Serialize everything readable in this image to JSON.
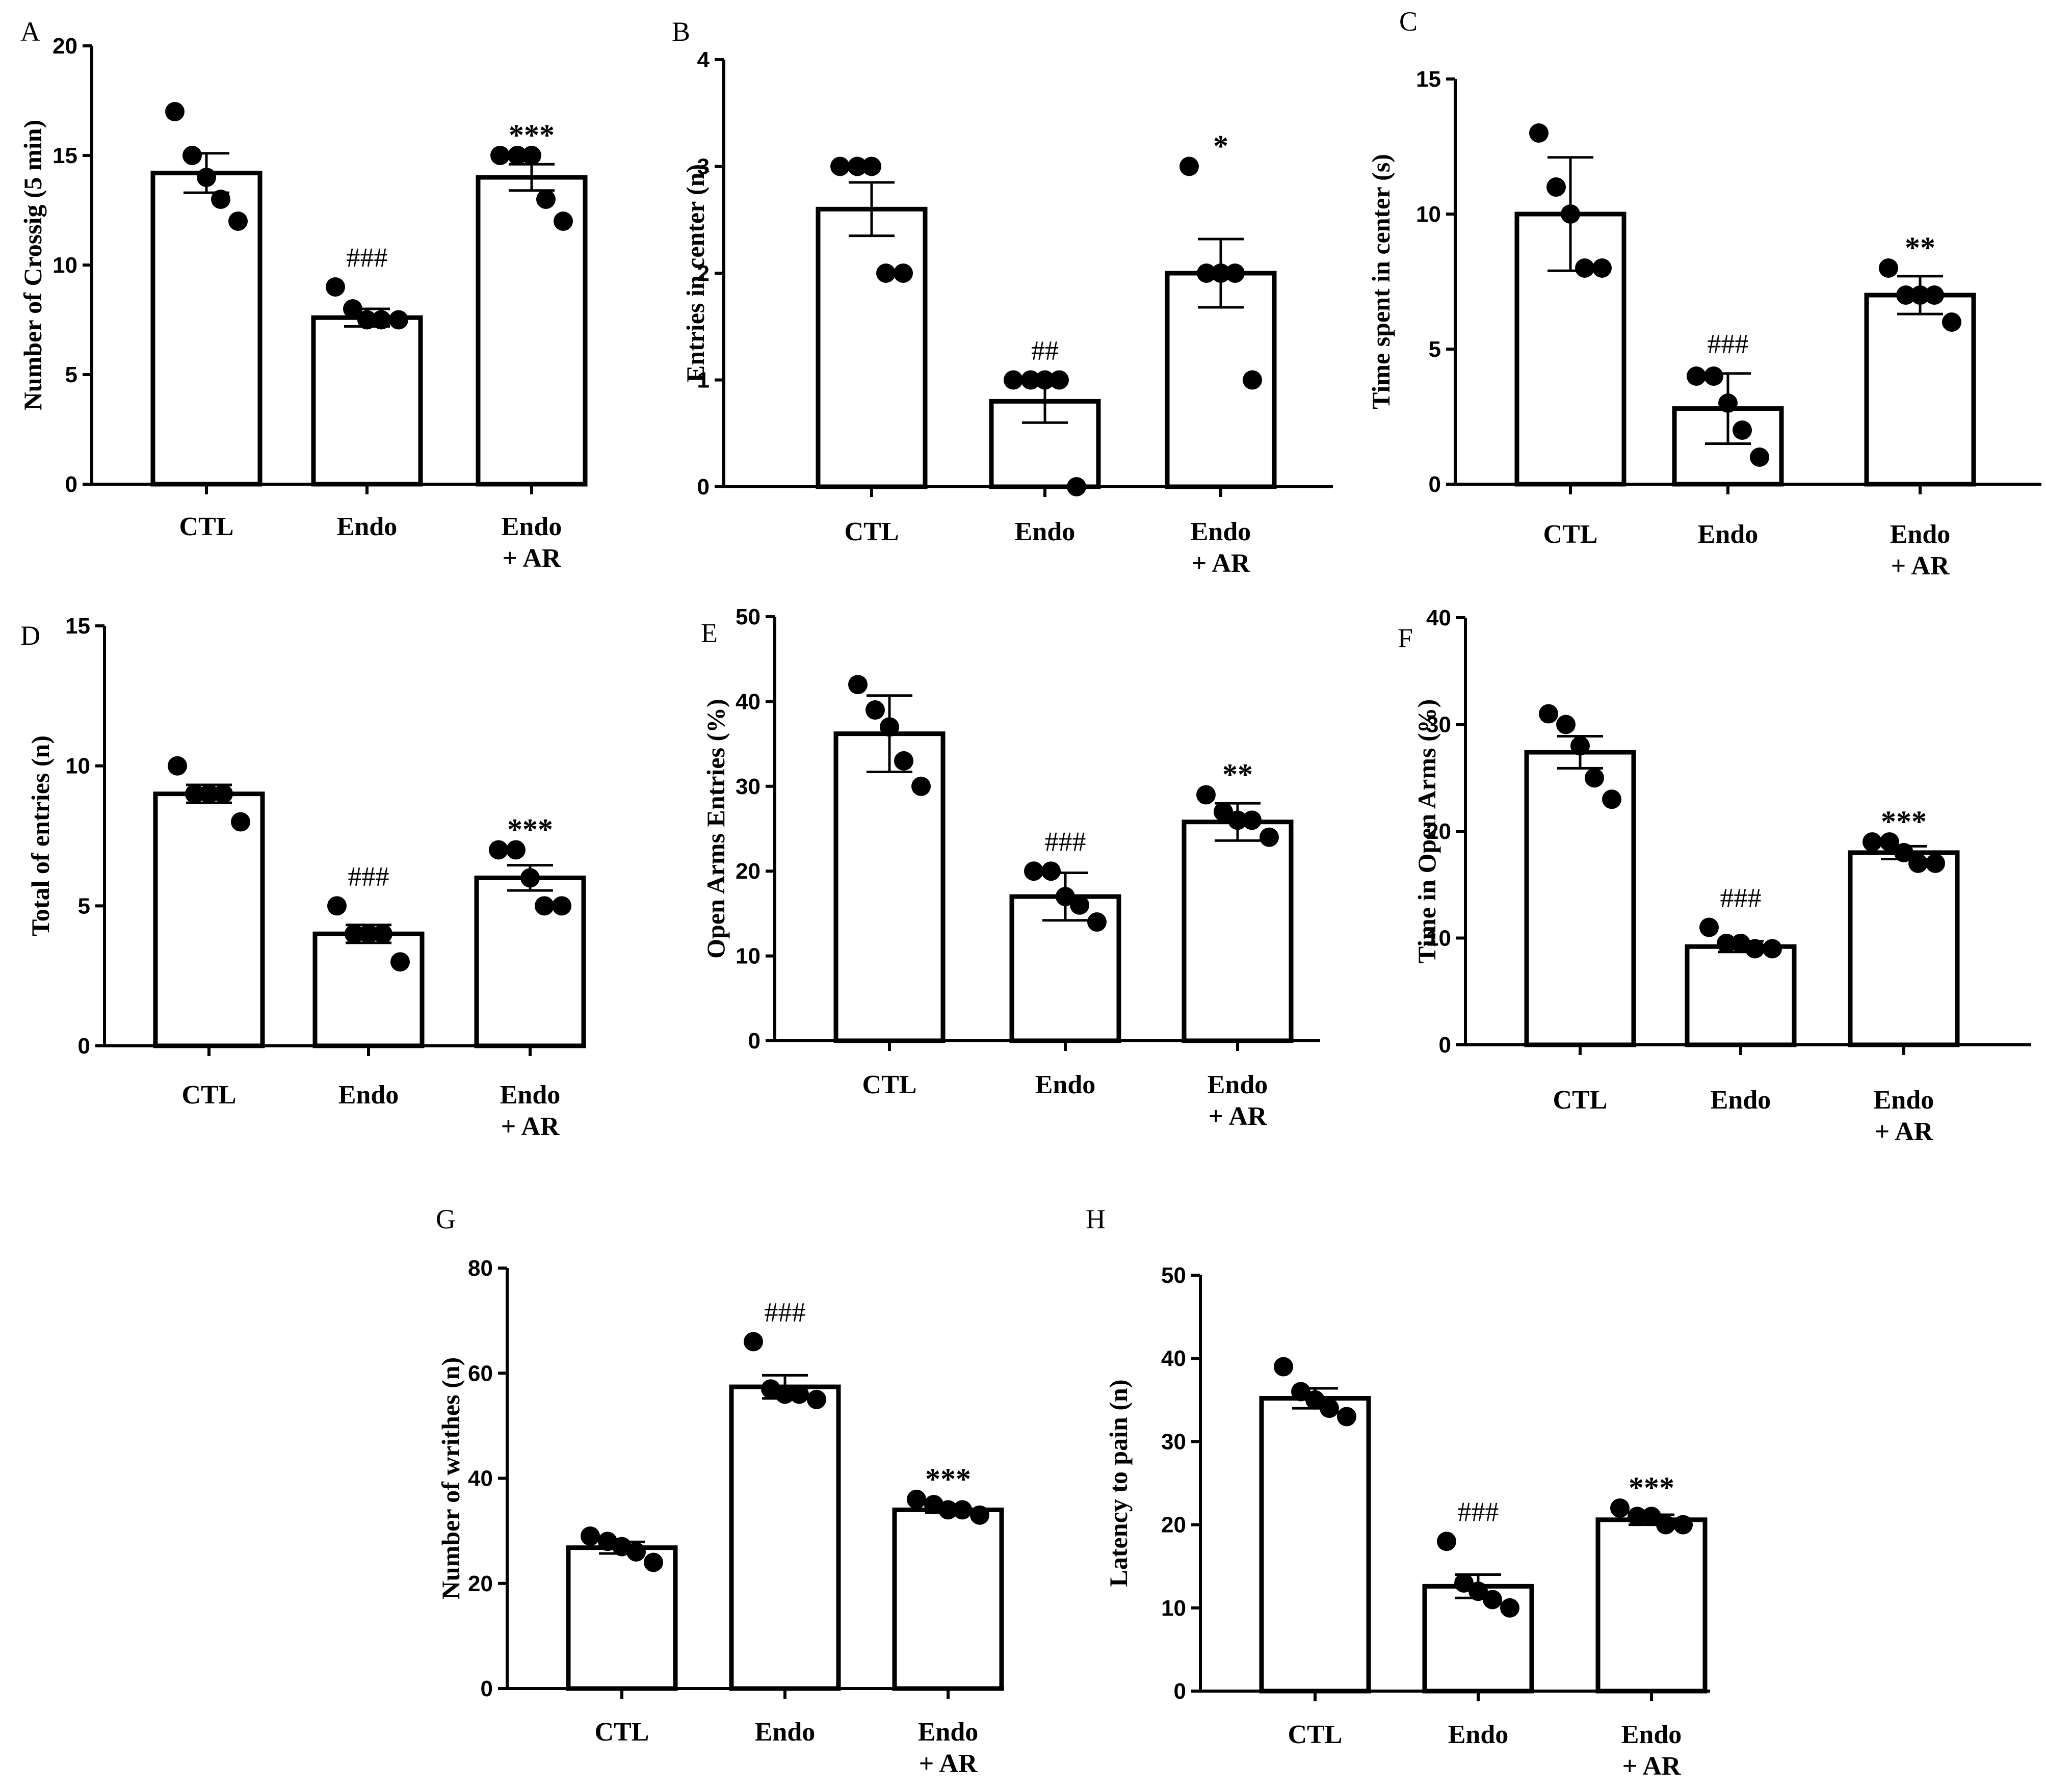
{
  "chart_data": [
    {
      "panel": "A",
      "type": "bar",
      "categories": [
        "CTL",
        "Endo",
        "Endo\n+ AR"
      ],
      "ylabel": "Number of Crossig (5 min)",
      "ylim": [
        0,
        20
      ],
      "yticks": [
        0,
        5,
        10,
        15,
        20
      ],
      "values": [
        14.2,
        7.6,
        14.0
      ],
      "errors": [
        0.9,
        0.4,
        0.6
      ],
      "points": [
        [
          17,
          15,
          14,
          13,
          12
        ],
        [
          9,
          8,
          7.5,
          7.5,
          7.5
        ],
        [
          15,
          15,
          15,
          13,
          12
        ]
      ],
      "annotations": [
        "",
        "###",
        "***"
      ]
    },
    {
      "panel": "B",
      "type": "bar",
      "categories": [
        "CTL",
        "Endo",
        "Endo\n+ AR"
      ],
      "ylabel": "Entries in center (n)",
      "ylim": [
        0,
        4
      ],
      "yticks": [
        0,
        1,
        2,
        3,
        4
      ],
      "values": [
        2.6,
        0.8,
        2.0
      ],
      "errors": [
        0.25,
        0.2,
        0.32
      ],
      "points": [
        [
          3,
          3,
          3,
          2,
          2
        ],
        [
          1,
          1,
          1,
          1,
          0
        ],
        [
          3,
          2,
          2,
          2,
          1
        ]
      ],
      "annotations": [
        "",
        "##",
        "*"
      ]
    },
    {
      "panel": "C",
      "type": "bar",
      "categories": [
        "CTL",
        "Endo",
        "Endo\n+ AR"
      ],
      "ylabel": "Time spent in center (s)",
      "ylim": [
        0,
        15
      ],
      "yticks": [
        0,
        5,
        10,
        15
      ],
      "values": [
        10.0,
        2.8,
        7.0
      ],
      "errors": [
        2.1,
        1.3,
        0.7
      ],
      "points": [
        [
          13,
          11,
          10,
          8,
          8
        ],
        [
          4,
          4,
          3,
          2,
          1
        ],
        [
          8,
          7,
          7,
          7,
          6
        ]
      ],
      "annotations": [
        "",
        "###",
        "**"
      ]
    },
    {
      "panel": "D",
      "type": "bar",
      "categories": [
        "CTL",
        "Endo",
        "Endo\n+ AR"
      ],
      "ylabel": "Total of entries (n)",
      "ylim": [
        0,
        15
      ],
      "yticks": [
        0,
        5,
        10,
        15
      ],
      "values": [
        9.0,
        4.0,
        6.0
      ],
      "errors": [
        0.32,
        0.32,
        0.45
      ],
      "points": [
        [
          10,
          9,
          9,
          9,
          8
        ],
        [
          5,
          4,
          4,
          4,
          3
        ],
        [
          7,
          7,
          6,
          5,
          5
        ]
      ],
      "annotations": [
        "",
        "###",
        "***"
      ]
    },
    {
      "panel": "E",
      "type": "bar",
      "categories": [
        "CTL",
        "Endo",
        "Endo\n+ AR"
      ],
      "ylabel": "Open Arms Entries (%)",
      "ylim": [
        0,
        50
      ],
      "yticks": [
        0,
        10,
        20,
        30,
        40,
        50
      ],
      "values": [
        36.2,
        17.0,
        25.8
      ],
      "errors": [
        4.5,
        2.8,
        2.2
      ],
      "points": [
        [
          42,
          39,
          37,
          33,
          30
        ],
        [
          20,
          20,
          17,
          16,
          14
        ],
        [
          29,
          27,
          26,
          26,
          24
        ]
      ],
      "annotations": [
        "",
        "###",
        "**"
      ]
    },
    {
      "panel": "F",
      "type": "bar",
      "categories": [
        "CTL",
        "Endo",
        "Endo\n+ AR"
      ],
      "ylabel": "Time in Open Arms (%)",
      "ylim": [
        0,
        40
      ],
      "yticks": [
        0,
        10,
        20,
        30,
        40
      ],
      "values": [
        27.4,
        9.2,
        18.0
      ],
      "errors": [
        1.5,
        0.5,
        0.6
      ],
      "points": [
        [
          31,
          30,
          28,
          25,
          23
        ],
        [
          11,
          9.5,
          9.5,
          9,
          9
        ],
        [
          19,
          19,
          18,
          17,
          17
        ]
      ],
      "annotations": [
        "",
        "###",
        "***"
      ]
    },
    {
      "panel": "G",
      "type": "bar",
      "categories": [
        "CTL",
        "Endo",
        "Endo\n+ AR"
      ],
      "ylabel": "Number of writhes (n)",
      "ylim": [
        0,
        80
      ],
      "yticks": [
        0,
        20,
        40,
        60,
        80
      ],
      "values": [
        26.8,
        57.4,
        34.0
      ],
      "errors": [
        1.1,
        2.2,
        0.5
      ],
      "points": [
        [
          29,
          28,
          27,
          26,
          24
        ],
        [
          66,
          57,
          56,
          56,
          55
        ],
        [
          36,
          35,
          34,
          34,
          33
        ]
      ],
      "annotations": [
        "",
        "###",
        "***"
      ]
    },
    {
      "panel": "H",
      "type": "bar",
      "categories": [
        "CTL",
        "Endo",
        "Endo\n+ AR"
      ],
      "ylabel": "Latency to pain (n)",
      "ylim": [
        0,
        50
      ],
      "yticks": [
        0,
        10,
        20,
        30,
        40,
        50
      ],
      "values": [
        35.2,
        12.6,
        20.6
      ],
      "errors": [
        1.2,
        1.4,
        0.6
      ],
      "points": [
        [
          39,
          36,
          35,
          34,
          33
        ],
        [
          18,
          13,
          12,
          11,
          10
        ],
        [
          22,
          21,
          21,
          20,
          20
        ]
      ],
      "annotations": [
        "",
        "###",
        "***"
      ]
    }
  ]
}
